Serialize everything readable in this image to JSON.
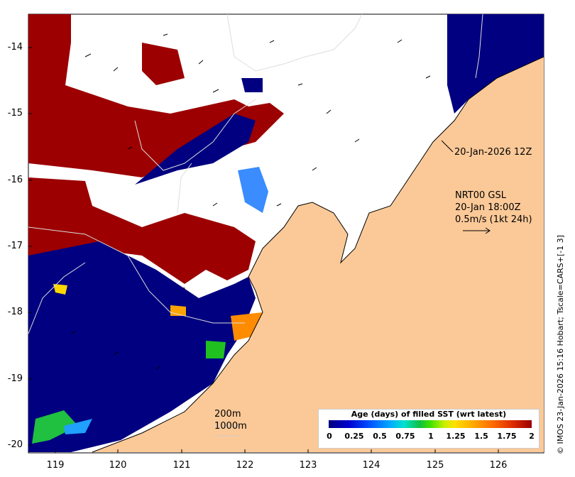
{
  "axes": {
    "y_ticks": [
      "-14",
      "-15",
      "-16",
      "-17",
      "-18",
      "-19",
      "-20"
    ],
    "x_ticks": [
      "119",
      "120",
      "121",
      "122",
      "123",
      "124",
      "125",
      "126"
    ]
  },
  "annotations": {
    "analysis_time": "20-Jan-2026 12Z",
    "product_line1": "NRT00 GSL",
    "product_line2": "20-Jan 18:00Z",
    "velocity_scale": "0.5m/s (1kt 24h)",
    "contour_200": "200m",
    "contour_1000": "1000m"
  },
  "legend": {
    "title": "Age (days) of filled SST (wrt latest)",
    "ticks": [
      "0",
      "0.25",
      "0.5",
      "0.75",
      "1",
      "1.25",
      "1.5",
      "1.75",
      "2"
    ]
  },
  "side_label": "© IMOS 23-Jan-2026 15:16 Hobart; Tscale=CARS+[-1 3]",
  "colors": {
    "land": "#fbc998",
    "recent": "#000080",
    "old": "#9c0000",
    "nodata": "#ffffff"
  }
}
